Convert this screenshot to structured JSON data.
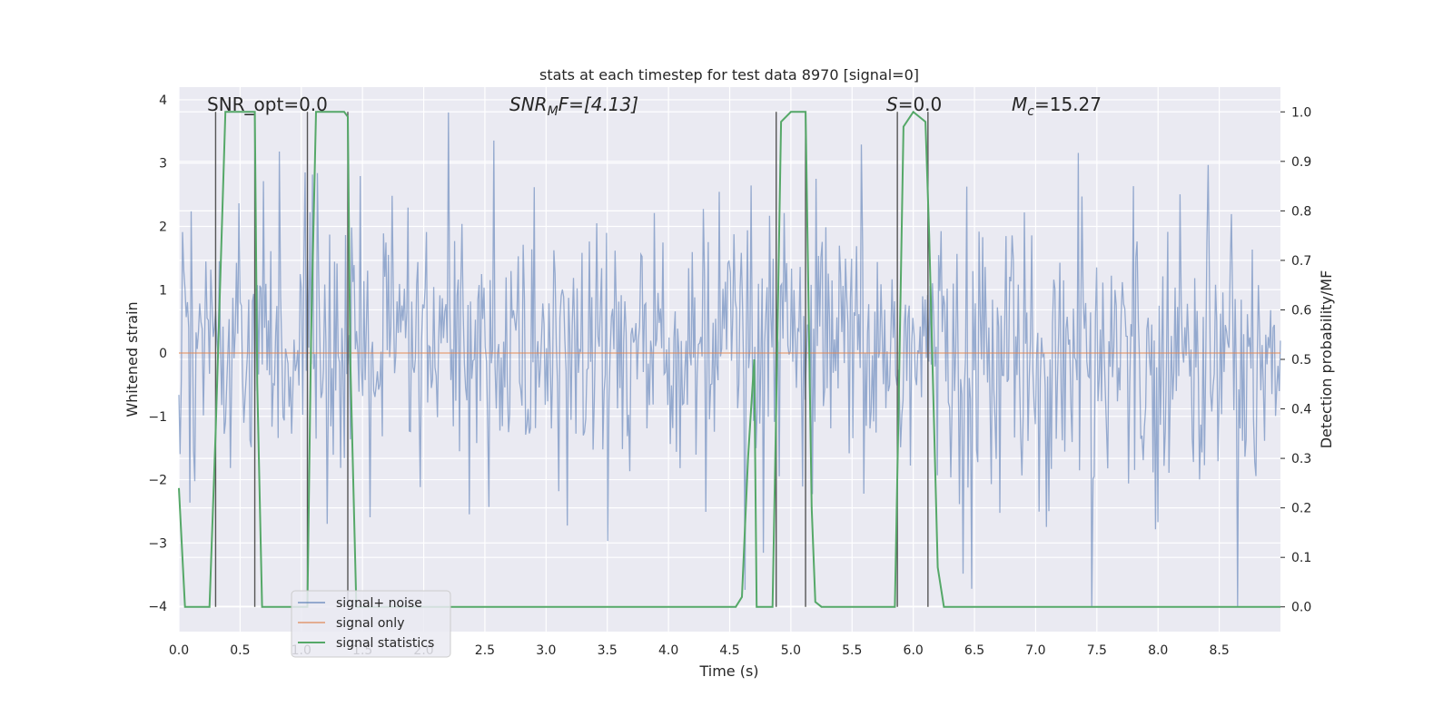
{
  "chart_data": {
    "type": "line",
    "title": "stats at each timestep for test data 8970 [signal=0]",
    "xlabel": "Time (s)",
    "ylabel": "Whitened strain",
    "y2label": "Detection probability/MF",
    "xlim": [
      0.0,
      9.0
    ],
    "ylim": [
      -4.4,
      4.2
    ],
    "y2lim": [
      -0.05,
      1.05
    ],
    "xticks": [
      "0.0",
      "0.5",
      "1.0",
      "1.5",
      "2.0",
      "2.5",
      "3.0",
      "3.5",
      "4.0",
      "4.5",
      "5.0",
      "5.5",
      "6.0",
      "6.5",
      "7.0",
      "7.5",
      "8.0",
      "8.5"
    ],
    "yticks": [
      "4",
      "3",
      "2",
      "1",
      "0",
      "−1",
      "−2",
      "−3",
      "−4"
    ],
    "y2ticks": [
      "1.0",
      "0.9",
      "0.8",
      "0.7",
      "0.6",
      "0.5",
      "0.4",
      "0.3",
      "0.2",
      "0.1",
      "0.0"
    ],
    "legend": [
      "signal+ noise",
      "signal only",
      "signal statistics"
    ],
    "legend_position": "lower-left",
    "colors": {
      "noise": "#4c72b0",
      "signal": "#dd8452",
      "stats": "#55a868",
      "vline": "#555555"
    },
    "annotations": {
      "snr_opt": "SNR_opt=0.0",
      "snr_mf_base": "SNR",
      "snr_mf_sub": "M",
      "snr_mf_rest": "F=[4.13]",
      "s_base": "S",
      "s_rest": "=0.0",
      "mc_base": "M",
      "mc_sub": "c",
      "mc_rest": "=15.27"
    },
    "noise_series": {
      "name": "signal+ noise",
      "sample_count": 900,
      "typical_range": [
        -1.6,
        1.6
      ],
      "peak_range": [
        -4.0,
        3.8
      ]
    },
    "signal_only": {
      "name": "signal only",
      "values": [
        0,
        0
      ]
    },
    "stats_series": {
      "name": "signal statistics",
      "x": [
        0.0,
        0.05,
        0.25,
        0.3,
        0.38,
        0.62,
        0.64,
        0.68,
        0.78,
        0.85,
        1.05,
        1.08,
        1.12,
        1.35,
        1.38,
        1.4,
        1.45,
        1.55,
        3.0,
        4.55,
        4.6,
        4.65,
        4.7,
        4.72,
        4.85,
        4.88,
        4.92,
        5.0,
        5.12,
        5.17,
        5.2,
        5.25,
        5.85,
        5.88,
        5.92,
        6.0,
        6.1,
        6.13,
        6.2,
        6.25,
        8.25,
        8.3,
        9.0
      ],
      "y": [
        0.24,
        0.0,
        0.0,
        0.35,
        1.0,
        1.0,
        0.45,
        0.0,
        0.0,
        0.0,
        0.0,
        0.55,
        1.0,
        1.0,
        0.99,
        0.5,
        0.0,
        0.0,
        0.0,
        0.0,
        0.02,
        0.3,
        0.5,
        0.0,
        0.0,
        0.4,
        0.98,
        1.0,
        1.0,
        0.2,
        0.01,
        0.0,
        0.0,
        0.4,
        0.97,
        1.0,
        0.98,
        0.75,
        0.08,
        0.0,
        0.0,
        0.0,
        0.0
      ]
    },
    "vlines": [
      0.3,
      0.62,
      1.05,
      1.38,
      4.88,
      5.12,
      5.87,
      6.12
    ]
  }
}
